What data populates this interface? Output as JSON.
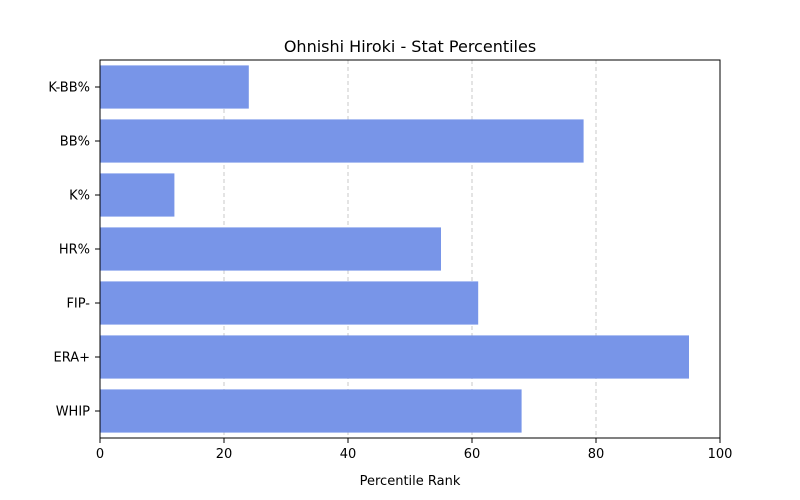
{
  "chart_data": {
    "type": "bar",
    "orientation": "horizontal",
    "title": "Ohnishi Hiroki - Stat Percentiles",
    "xlabel": "Percentile Rank",
    "ylabel": "",
    "categories": [
      "K-BB%",
      "BB%",
      "K%",
      "HR%",
      "FIP-",
      "ERA+",
      "WHIP"
    ],
    "values": [
      24,
      78,
      12,
      55,
      61,
      95,
      68
    ],
    "xlim": [
      0,
      100
    ],
    "xticks": [
      0,
      20,
      40,
      60,
      80,
      100
    ],
    "grid": "x-dashed",
    "bar_color": "#7895e8",
    "grid_color": "#c8c8c8"
  }
}
